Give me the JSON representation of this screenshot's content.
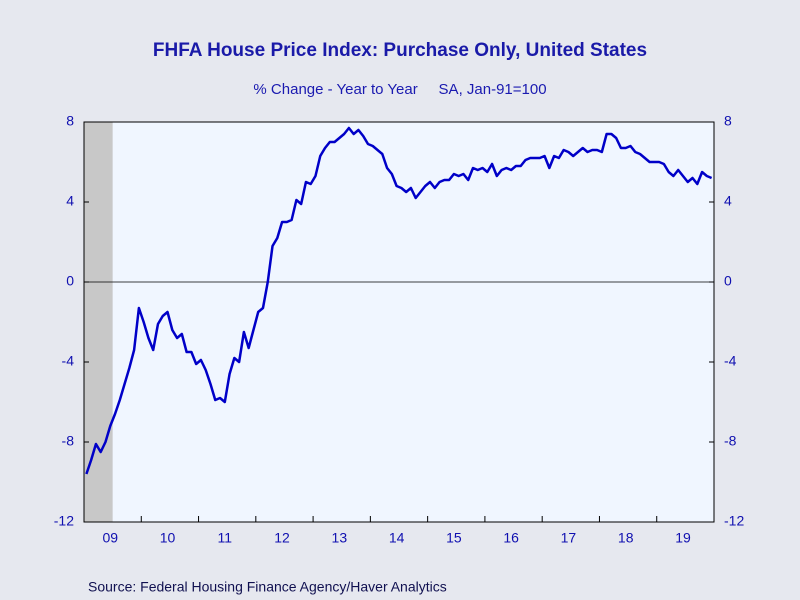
{
  "chart_data": {
    "type": "line",
    "title": "FHFA House Price Index: Purchase Only, United States",
    "subtitle": "% Change - Year to Year     SA, Jan-91=100",
    "source": "Source:  Federal Housing Finance Agency/Haver Analytics",
    "categories": [
      null,
      null,
      null,
      null,
      null,
      "09",
      null,
      null,
      null,
      null,
      null,
      null,
      null,
      null,
      null,
      null,
      null,
      "10",
      null,
      null,
      null,
      null,
      null,
      null,
      null,
      null,
      null,
      null,
      null,
      "11",
      null,
      null,
      null,
      null,
      null,
      null,
      null,
      null,
      null,
      null,
      null,
      "12",
      null,
      null,
      null,
      null,
      null,
      null,
      null,
      null,
      null,
      null,
      null,
      "13",
      null,
      null,
      null,
      null,
      null,
      null,
      null,
      null,
      null,
      null,
      null,
      "14",
      null,
      null,
      null,
      null,
      null,
      null,
      null,
      null,
      null,
      null,
      null,
      "15",
      null,
      null,
      null,
      null,
      null,
      null,
      null,
      null,
      null,
      null,
      null,
      "16",
      null,
      null,
      null,
      null,
      null,
      null,
      null,
      null,
      null,
      null,
      null,
      "17",
      null,
      null,
      null,
      null,
      null,
      null,
      null,
      null,
      null,
      null,
      null,
      "18",
      null,
      null,
      null,
      null,
      null,
      null,
      null,
      null,
      null,
      null,
      null,
      "19",
      null,
      null,
      null,
      null,
      null,
      null
    ],
    "series": [
      {
        "color": "#0000c8",
        "values": [
          -9.6,
          -8.9,
          -8.1,
          -8.5,
          -8.0,
          -7.2,
          -6.6,
          -5.9,
          -5.1,
          -4.3,
          -3.4,
          -1.3,
          -2.0,
          -2.8,
          -3.4,
          -2.1,
          -1.7,
          -1.5,
          -2.4,
          -2.8,
          -2.6,
          -3.5,
          -3.5,
          -4.1,
          -3.9,
          -4.4,
          -5.1,
          -5.9,
          -5.8,
          -6.0,
          -4.6,
          -3.8,
          -4.0,
          -2.5,
          -3.3,
          -2.4,
          -1.5,
          -1.3,
          0.0,
          1.8,
          2.2,
          3.0,
          3.0,
          3.1,
          4.1,
          3.9,
          5.0,
          4.9,
          5.3,
          6.3,
          6.7,
          7.0,
          7.0,
          7.2,
          7.4,
          7.7,
          7.4,
          7.6,
          7.3,
          6.9,
          6.8,
          6.6,
          6.4,
          5.7,
          5.4,
          4.8,
          4.7,
          4.5,
          4.7,
          4.2,
          4.5,
          4.8,
          5.0,
          4.7,
          5.0,
          5.1,
          5.1,
          5.4,
          5.3,
          5.4,
          5.1,
          5.7,
          5.6,
          5.7,
          5.5,
          5.9,
          5.3,
          5.6,
          5.7,
          5.6,
          5.8,
          5.8,
          6.1,
          6.2,
          6.2,
          6.2,
          6.3,
          5.7,
          6.3,
          6.2,
          6.6,
          6.5,
          6.3,
          6.5,
          6.7,
          6.5,
          6.6,
          6.6,
          6.5,
          7.4,
          7.4,
          7.2,
          6.7,
          6.7,
          6.8,
          6.5,
          6.4,
          6.2,
          6.0,
          6.0,
          6.0,
          5.9,
          5.5,
          5.3,
          5.6,
          5.3,
          5.0,
          5.2,
          4.9,
          5.5,
          5.3,
          5.2
        ]
      }
    ],
    "shaded_categories": [
      0,
      5
    ],
    "ylim": [
      -12,
      8
    ],
    "yticks": [
      -12,
      -8,
      -4,
      0,
      4,
      8
    ],
    "y2lim": [
      -12,
      8
    ],
    "y2ticks": [
      -12,
      -8,
      -4,
      0,
      4,
      8
    ],
    "grid": false
  }
}
